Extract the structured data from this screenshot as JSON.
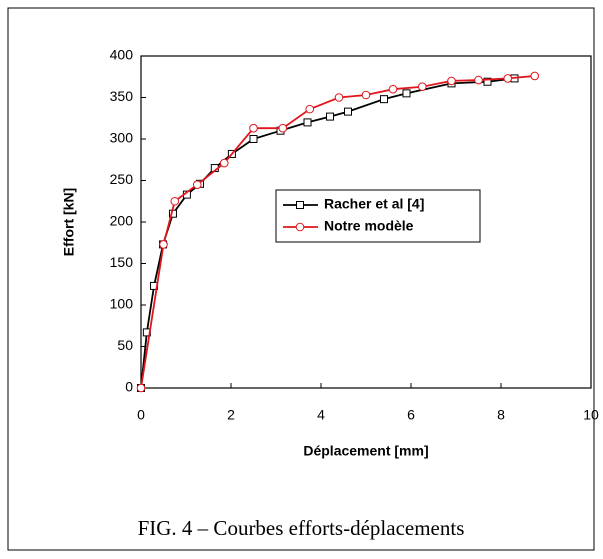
{
  "chart_data": {
    "type": "line",
    "xlabel": "Déplacement [mm]",
    "ylabel": "Effort [kN]",
    "caption": "FIG. 4 – Courbes efforts-déplacements",
    "xlim": [
      0,
      10
    ],
    "xticks": [
      0,
      2,
      4,
      6,
      8,
      10
    ],
    "ylim": [
      0,
      400
    ],
    "yticks": [
      0,
      50,
      100,
      150,
      200,
      250,
      300,
      350,
      400
    ],
    "series": [
      {
        "name": "Racher et al [4]",
        "color": "#000000",
        "marker": "square",
        "x": [
          0,
          0.13,
          0.29,
          0.49,
          0.71,
          1.02,
          1.31,
          1.64,
          2.02,
          2.5,
          3.1,
          3.7,
          4.2,
          4.6,
          5.4,
          5.9,
          6.9,
          7.7,
          8.3
        ],
        "values": [
          0,
          67,
          123,
          173,
          210,
          233,
          246,
          265,
          282,
          300,
          310,
          320,
          327,
          333,
          348,
          355,
          367,
          369,
          373
        ]
      },
      {
        "name": "Notre modèle",
        "color": "#e0161c",
        "marker": "circle",
        "x": [
          0,
          0.5,
          0.75,
          1.25,
          1.85,
          2.5,
          3.15,
          3.75,
          4.4,
          5.0,
          5.6,
          6.25,
          6.9,
          7.5,
          8.15,
          8.75
        ],
        "values": [
          0,
          173,
          225,
          245,
          271,
          313,
          313,
          336,
          350,
          353,
          360,
          363,
          370,
          371,
          373,
          376
        ]
      }
    ]
  }
}
